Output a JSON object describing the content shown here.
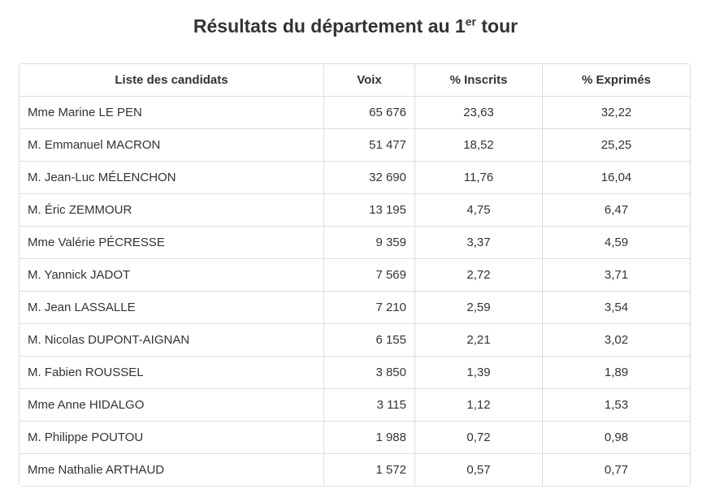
{
  "title": {
    "prefix": "Résultats du département au 1",
    "superscript": "er",
    "suffix": " tour"
  },
  "colors": {
    "text": "#333333",
    "border": "#dddddd",
    "background": "#ffffff"
  },
  "table": {
    "columns": [
      "Liste des candidats",
      "Voix",
      "% Inscrits",
      "% Exprimés"
    ],
    "rows": [
      {
        "candidate": "Mme Marine LE PEN",
        "voix": "65 676",
        "inscrits": "23,63",
        "exprimes": "32,22"
      },
      {
        "candidate": "M. Emmanuel MACRON",
        "voix": "51 477",
        "inscrits": "18,52",
        "exprimes": "25,25"
      },
      {
        "candidate": "M. Jean-Luc MÉLENCHON",
        "voix": "32 690",
        "inscrits": "11,76",
        "exprimes": "16,04"
      },
      {
        "candidate": "M. Éric ZEMMOUR",
        "voix": "13 195",
        "inscrits": "4,75",
        "exprimes": "6,47"
      },
      {
        "candidate": "Mme Valérie PÉCRESSE",
        "voix": "9 359",
        "inscrits": "3,37",
        "exprimes": "4,59"
      },
      {
        "candidate": "M. Yannick JADOT",
        "voix": "7 569",
        "inscrits": "2,72",
        "exprimes": "3,71"
      },
      {
        "candidate": "M. Jean LASSALLE",
        "voix": "7 210",
        "inscrits": "2,59",
        "exprimes": "3,54"
      },
      {
        "candidate": "M. Nicolas DUPONT-AIGNAN",
        "voix": "6 155",
        "inscrits": "2,21",
        "exprimes": "3,02"
      },
      {
        "candidate": "M. Fabien ROUSSEL",
        "voix": "3 850",
        "inscrits": "1,39",
        "exprimes": "1,89"
      },
      {
        "candidate": "Mme Anne HIDALGO",
        "voix": "3 115",
        "inscrits": "1,12",
        "exprimes": "1,53"
      },
      {
        "candidate": "M. Philippe POUTOU",
        "voix": "1 988",
        "inscrits": "0,72",
        "exprimes": "0,98"
      },
      {
        "candidate": "Mme Nathalie ARTHAUD",
        "voix": "1 572",
        "inscrits": "0,57",
        "exprimes": "0,77"
      }
    ]
  }
}
